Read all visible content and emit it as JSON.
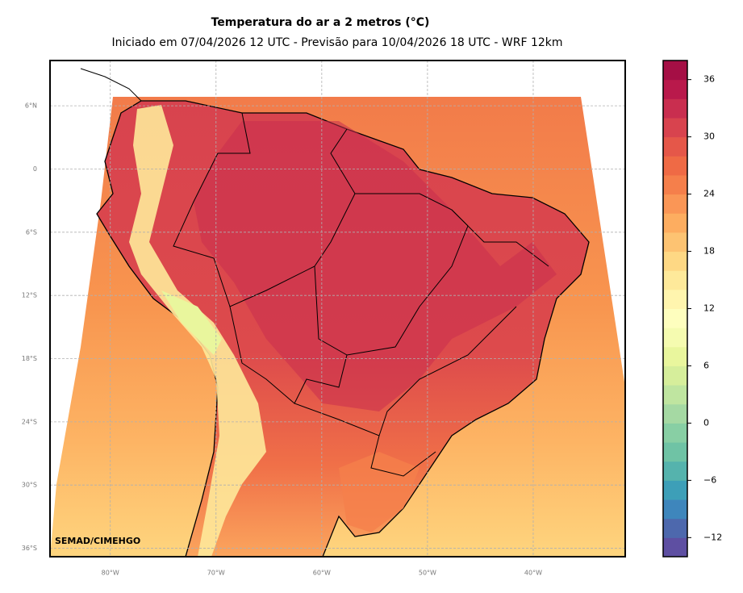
{
  "title": "Temperatura do ar a 2 metros (°C)",
  "subtitle": "Iniciado em 07/04/2026 12 UTC - Previsão para 10/04/2026 18 UTC - WRF 12km",
  "credit": "SEMAD/CIMEHGO",
  "map": {
    "lonlim": [
      -85.7,
      -31.3
    ],
    "latlim": [
      -36.8,
      10.3
    ],
    "grid": true,
    "lonticks": [
      {
        "value": -80,
        "label": "80°W"
      },
      {
        "value": -70,
        "label": "70°W"
      },
      {
        "value": -60,
        "label": "60°W"
      },
      {
        "value": -50,
        "label": "50°W"
      },
      {
        "value": -40,
        "label": "40°W"
      }
    ],
    "latticks": [
      {
        "value": 6,
        "label": "6°N"
      },
      0,
      {
        "value": -6,
        "label": "6°S"
      },
      {
        "value": -12,
        "label": "12°S"
      },
      {
        "value": -18,
        "label": "18°S"
      },
      {
        "value": -24,
        "label": "24°S"
      },
      {
        "value": -30,
        "label": "30°S"
      },
      {
        "value": -36,
        "label": "36°S"
      }
    ]
  },
  "colorbar": {
    "lim": [
      -14,
      38
    ],
    "ticks": [
      {
        "value": -12,
        "label": "−12"
      },
      {
        "value": -6,
        "label": "−6"
      },
      0,
      6,
      12,
      18,
      24,
      30,
      36
    ],
    "colors": [
      "#5e4fa2",
      "#4d68ad",
      "#3e86bc",
      "#3d9fb8",
      "#55b3ad",
      "#6fc3a5",
      "#88cfa4",
      "#a5d9a3",
      "#bfe5a0",
      "#d6ee9b",
      "#e9f69d",
      "#f5fbb0",
      "#fefebe",
      "#fff5ae",
      "#fee99a",
      "#fed884",
      "#fdc372",
      "#fdad60",
      "#fa9656",
      "#f57f4b",
      "#ef6a45",
      "#e55749",
      "#d8434e",
      "#c92e4f",
      "#b9194b",
      "#a50f45"
    ]
  }
}
